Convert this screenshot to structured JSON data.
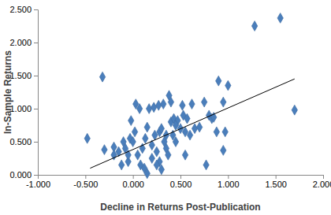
{
  "chart_data": {
    "type": "scatter",
    "x_label": "Decline in Returns Post-Publication",
    "y_label": "In-Sample Returns",
    "xlim": [
      -1,
      2
    ],
    "xticks": [
      {
        "value": -1,
        "label": "-1.000"
      },
      {
        "value": -0.5,
        "label": "-0.500"
      },
      {
        "value": 0,
        "label": "0.000"
      },
      {
        "value": 0.5,
        "label": "0.500"
      },
      {
        "value": 1,
        "label": "1.000"
      },
      {
        "value": 1.5,
        "label": "1.500"
      },
      {
        "value": 2,
        "label": "2.000"
      }
    ],
    "ylim": [
      0,
      2.5
    ],
    "yticks": [
      {
        "value": 0,
        "label": "0.000"
      },
      {
        "value": 0.5,
        "label": "0.500"
      },
      {
        "value": 1,
        "label": "1.000"
      },
      {
        "value": 1.5,
        "label": "1.500"
      },
      {
        "value": 2,
        "label": "2.000"
      },
      {
        "value": 2.5,
        "label": "2.500"
      }
    ],
    "grid": false,
    "series": [
      {
        "type": "scatter",
        "marker": "diamond",
        "color": "#4a7ebb",
        "x": [
          -0.48,
          -0.32,
          -0.3,
          -0.2,
          -0.2,
          -0.15,
          -0.12,
          -0.1,
          -0.08,
          -0.05,
          -0.03,
          -0.02,
          0.0,
          0.02,
          0.03,
          0.05,
          0.07,
          0.08,
          0.1,
          0.12,
          0.13,
          0.15,
          0.15,
          0.17,
          0.2,
          0.2,
          0.22,
          0.23,
          0.25,
          0.27,
          0.28,
          0.28,
          0.3,
          0.3,
          0.32,
          0.33,
          0.35,
          0.37,
          0.38,
          0.4,
          0.4,
          0.42,
          0.43,
          0.45,
          0.47,
          0.5,
          0.52,
          0.53,
          0.55,
          0.55,
          0.57,
          0.6,
          0.62,
          0.65,
          0.7,
          0.75,
          0.77,
          0.8,
          0.83,
          0.85,
          0.88,
          0.9,
          0.95,
          0.95,
          0.97,
          1.0,
          1.28,
          1.55,
          1.7,
          0.35,
          0.45,
          -0.05,
          0.25
        ],
        "values": [
          0.55,
          1.48,
          0.38,
          0.42,
          0.3,
          0.35,
          0.15,
          0.5,
          0.4,
          0.2,
          0.55,
          0.82,
          0.5,
          0.65,
          1.07,
          0.3,
          1.0,
          0.15,
          0.4,
          0.1,
          0.55,
          0.72,
          0.02,
          1.0,
          0.45,
          0.25,
          1.02,
          0.6,
          0.35,
          1.05,
          0.2,
          0.65,
          0.7,
          0.08,
          1.07,
          0.5,
          0.4,
          0.3,
          1.2,
          1.1,
          0.8,
          0.6,
          0.85,
          0.5,
          0.82,
          0.7,
          1.05,
          0.9,
          0.3,
          0.65,
          0.85,
          0.6,
          1.07,
          0.7,
          0.72,
          1.1,
          0.15,
          0.9,
          0.85,
          0.87,
          0.65,
          1.42,
          1.1,
          0.37,
          0.65,
          1.35,
          2.25,
          2.37,
          0.98,
          0.6,
          0.75,
          0.3,
          0.15
        ]
      },
      {
        "type": "line",
        "line_style": "solid",
        "color": "#000000",
        "x": [
          -0.45,
          1.7
        ],
        "values": [
          0.1,
          1.45
        ]
      }
    ]
  }
}
